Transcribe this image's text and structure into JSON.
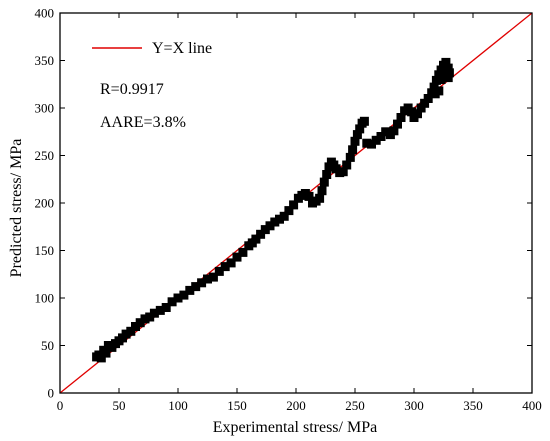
{
  "chart_data": {
    "type": "scatter",
    "xlabel": "Experimental stress/ MPa",
    "ylabel": "Predicted stress/ MPa",
    "xlim": [
      0,
      400
    ],
    "ylim": [
      0,
      400
    ],
    "x_ticks": [
      0,
      50,
      100,
      150,
      200,
      250,
      300,
      350,
      400
    ],
    "y_ticks": [
      0,
      50,
      100,
      150,
      200,
      250,
      300,
      350,
      400
    ],
    "grid": false,
    "legend": {
      "position": "top-left",
      "entries": [
        {
          "label": "Y=X line",
          "color": "#e00000"
        }
      ]
    },
    "annotations": [
      "R=0.9917",
      "AARE=3.8%"
    ],
    "colors": {
      "reference_line": "#e00000",
      "markers": "#000000"
    },
    "series": [
      {
        "kind": "reference-line",
        "x": [
          0,
          400
        ],
        "y": [
          0,
          400
        ]
      },
      {
        "kind": "scatter",
        "marker": "square",
        "x": [
          31,
          33,
          35,
          37,
          39,
          41,
          44,
          47,
          50,
          53,
          56,
          60,
          64,
          68,
          72,
          76,
          80,
          85,
          90,
          95,
          100,
          105,
          110,
          115,
          120,
          125,
          130,
          135,
          140,
          145,
          150,
          155,
          160,
          163,
          166,
          170,
          174,
          178,
          182,
          186,
          190,
          194,
          198,
          202,
          205,
          208,
          211,
          214,
          217,
          220,
          222,
          224,
          226,
          228,
          230,
          232,
          234,
          237,
          240,
          243,
          246,
          248,
          250,
          252,
          254,
          256,
          258,
          260,
          264,
          268,
          272,
          276,
          280,
          283,
          286,
          289,
          292,
          295,
          298,
          300,
          303,
          306,
          309,
          312,
          315,
          317,
          319,
          321,
          323,
          325,
          327,
          329,
          330,
          329,
          327,
          325,
          323,
          321,
          318
        ],
        "y": [
          38,
          40,
          37,
          45,
          42,
          50,
          48,
          52,
          55,
          58,
          62,
          65,
          70,
          74,
          78,
          80,
          84,
          87,
          90,
          96,
          100,
          103,
          108,
          112,
          116,
          120,
          122,
          128,
          133,
          137,
          143,
          148,
          155,
          158,
          162,
          167,
          172,
          176,
          180,
          183,
          186,
          192,
          198,
          205,
          208,
          210,
          207,
          200,
          202,
          205,
          213,
          222,
          230,
          238,
          243,
          240,
          236,
          232,
          233,
          240,
          248,
          256,
          265,
          272,
          278,
          284,
          286,
          263,
          262,
          266,
          270,
          275,
          272,
          276,
          283,
          290,
          297,
          300,
          296,
          290,
          294,
          300,
          305,
          310,
          316,
          322,
          329,
          335,
          340,
          345,
          338,
          332,
          337,
          342,
          348,
          340,
          330,
          318,
          315
        ]
      }
    ]
  }
}
